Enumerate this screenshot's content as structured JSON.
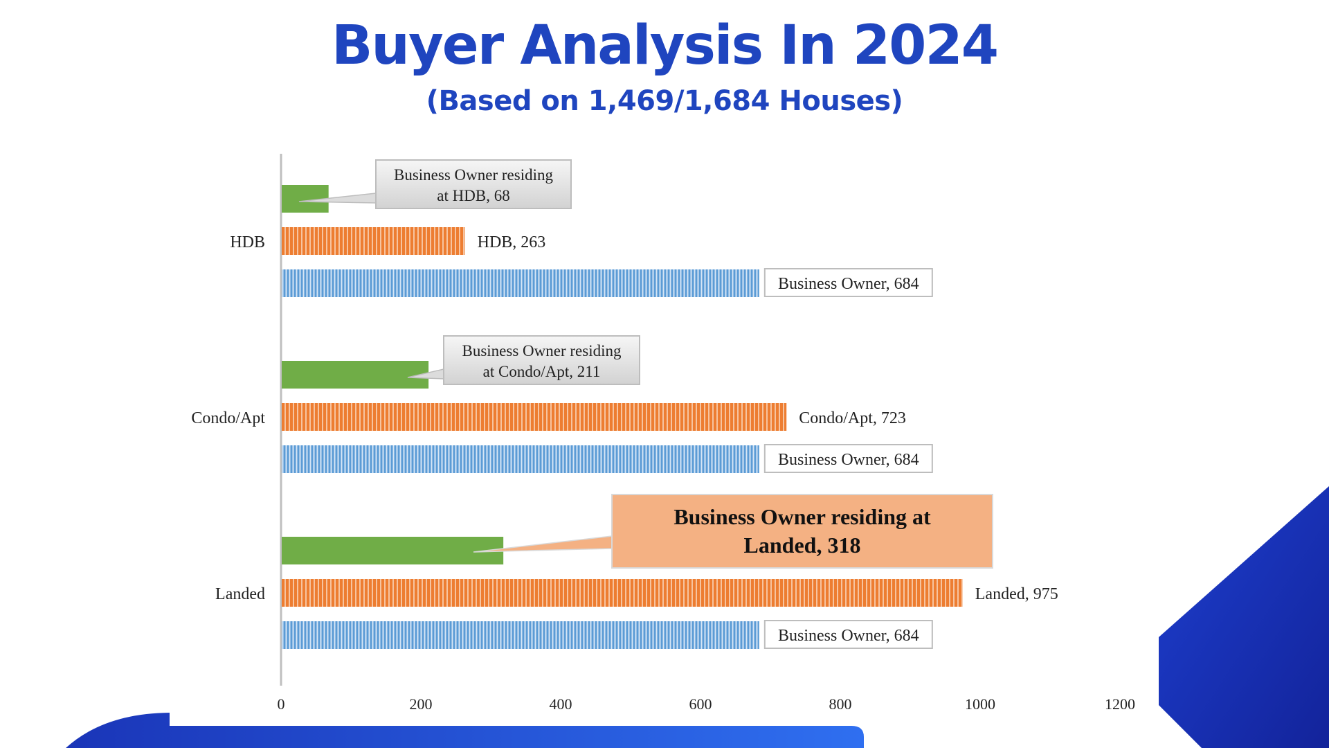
{
  "title": "Buyer Analysis In 2024",
  "subtitle": "(Based on 1,469/1,684 Houses)",
  "colors": {
    "title": "#1f45bf",
    "residing": "#70ad47",
    "property": "#ed7d31",
    "business_owner": "#5b9bd5",
    "highlight_callout": "#f4b183",
    "deco_blue": "#1a35b8"
  },
  "chart_data": {
    "type": "bar",
    "orientation": "horizontal",
    "categories": [
      "HDB",
      "Condo/Apt",
      "Landed"
    ],
    "series": [
      {
        "key": "residing",
        "values": [
          68,
          211,
          318
        ],
        "labels": [
          "Business Owner residing at HDB, 68",
          "Business Owner residing at Condo/Apt, 211",
          "Business Owner residing at Landed, 318"
        ],
        "label_lines": [
          [
            "Business Owner residing",
            "at HDB, 68"
          ],
          [
            "Business Owner residing",
            "at Condo/Apt, 211"
          ],
          [
            "Business Owner residing at",
            "Landed, 318"
          ]
        ]
      },
      {
        "key": "property",
        "values": [
          263,
          723,
          975
        ],
        "labels": [
          "HDB, 263",
          "Condo/Apt, 723",
          "Landed, 975"
        ]
      },
      {
        "key": "business_owner",
        "values": [
          684,
          684,
          684
        ],
        "labels": [
          "Business Owner, 684",
          "Business Owner, 684",
          "Business Owner, 684"
        ]
      }
    ],
    "xlim": [
      0,
      1200
    ],
    "xticks": [
      "0",
      "200",
      "400",
      "600",
      "800",
      "1000",
      "1200"
    ],
    "grid": false,
    "legend": "none"
  }
}
